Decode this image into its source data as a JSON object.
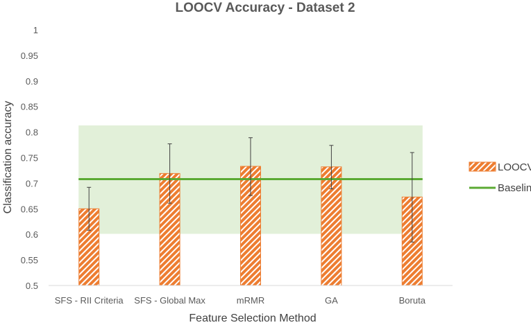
{
  "chart_data": {
    "type": "bar",
    "title": "LOOCV Accuracy - Dataset 2",
    "xlabel": "Feature Selection Method",
    "ylabel": "Classification accuracy",
    "categories": [
      "SFS - RII Criteria",
      "SFS - Global Max",
      "mRMR",
      "GA",
      "Boruta"
    ],
    "series": [
      {
        "name": "LOOCV",
        "values": [
          0.65,
          0.719,
          0.733,
          0.732,
          0.673
        ],
        "error_low": [
          0.608,
          0.661,
          0.676,
          0.689,
          0.585
        ],
        "error_high": [
          0.692,
          0.777,
          0.789,
          0.774,
          0.76
        ],
        "color": "#ED7D31",
        "pattern": "diagonal-stripes"
      }
    ],
    "baseline": {
      "name": "Baseline",
      "value": 0.708,
      "color": "#5BAA33"
    },
    "shaded_band": {
      "low": 0.601,
      "high": 0.813,
      "color": "#E2F0D9"
    },
    "ylim": [
      0.5,
      1
    ],
    "yticks": [
      "0.5",
      "0.55",
      "0.6",
      "0.65",
      "0.7",
      "0.75",
      "0.8",
      "0.85",
      "0.9",
      "0.95",
      "1"
    ],
    "grid": false,
    "legend": "right"
  }
}
